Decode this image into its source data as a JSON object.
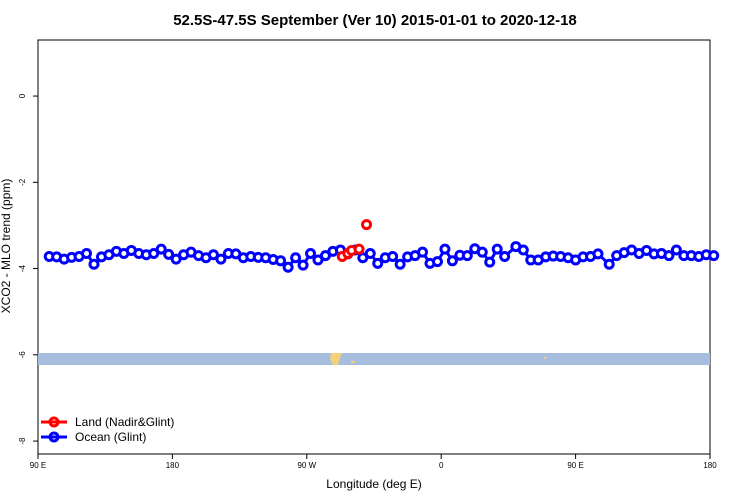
{
  "chart_data": {
    "type": "line",
    "title": "52.5S-47.5S September (Ver 10)   2015-01-01 to 2020-12-18",
    "xlabel": "Longitude (deg E)",
    "ylabel": "XCO2 - MLO trend (ppm)",
    "xlim": [
      90,
      450
    ],
    "ylim": [
      -8.3,
      1.3
    ],
    "x_ticks": [
      {
        "value": 90,
        "label": "90 E"
      },
      {
        "value": 162,
        "label": "180"
      },
      {
        "value": 234,
        "label": "90 W"
      },
      {
        "value": 306,
        "label": "0"
      },
      {
        "value": 378,
        "label": "90 E"
      },
      {
        "value": 450,
        "label": "180"
      }
    ],
    "y_ticks": [
      {
        "value": 0,
        "label": "0"
      },
      {
        "value": -2,
        "label": "-2"
      },
      {
        "value": -4,
        "label": "-4"
      },
      {
        "value": -6,
        "label": "-6"
      },
      {
        "value": -8,
        "label": "-8"
      }
    ],
    "grid": false,
    "legend_position": "bottom-left",
    "series": [
      {
        "name": "Land (Nadir&Glint)",
        "color": "#ff0000",
        "x": [
          253,
          256,
          258,
          262,
          266
        ],
        "y": [
          -3.72,
          -3.65,
          -3.58,
          -3.55,
          -2.98
        ]
      },
      {
        "name": "Ocean (Glint)",
        "color": "#0000ff",
        "x": [
          96,
          100,
          104,
          108,
          112,
          116,
          120,
          124,
          128,
          132,
          136,
          140,
          144,
          148,
          152,
          156,
          160,
          164,
          168,
          172,
          176,
          180,
          184,
          188,
          192,
          196,
          200,
          204,
          208,
          212,
          216,
          220,
          224,
          228,
          232,
          236,
          240,
          244,
          248,
          252,
          256,
          260,
          264,
          268,
          272,
          276,
          280,
          284,
          288,
          292,
          296,
          300,
          304,
          308,
          312,
          316,
          320,
          324,
          328,
          332,
          336,
          340,
          346,
          350,
          354,
          358,
          362,
          366,
          370,
          374,
          378,
          382,
          386,
          390,
          396,
          400,
          404,
          408,
          412,
          416,
          420,
          424,
          428,
          432,
          436,
          440,
          444,
          448,
          452
        ],
        "y": [
          -3.72,
          -3.73,
          -3.78,
          -3.74,
          -3.72,
          -3.65,
          -3.9,
          -3.73,
          -3.68,
          -3.6,
          -3.65,
          -3.58,
          -3.65,
          -3.68,
          -3.65,
          -3.55,
          -3.67,
          -3.78,
          -3.68,
          -3.62,
          -3.7,
          -3.75,
          -3.68,
          -3.78,
          -3.65,
          -3.66,
          -3.75,
          -3.72,
          -3.74,
          -3.75,
          -3.79,
          -3.82,
          -3.97,
          -3.75,
          -3.92,
          -3.65,
          -3.8,
          -3.7,
          -3.6,
          -3.57,
          -3.66,
          -3.57,
          -3.75,
          -3.65,
          -3.88,
          -3.75,
          -3.72,
          -3.9,
          -3.73,
          -3.7,
          -3.62,
          -3.88,
          -3.84,
          -3.55,
          -3.82,
          -3.69,
          -3.7,
          -3.54,
          -3.62,
          -3.85,
          -3.55,
          -3.72,
          -3.49,
          -3.57,
          -3.8,
          -3.8,
          -3.73,
          -3.71,
          -3.72,
          -3.75,
          -3.8,
          -3.73,
          -3.72,
          -3.66,
          -3.9,
          -3.7,
          -3.63,
          -3.57,
          -3.65,
          -3.58,
          -3.66,
          -3.65,
          -3.7,
          -3.57,
          -3.7,
          -3.7,
          -3.72,
          -3.68,
          -3.7
        ]
      }
    ]
  }
}
